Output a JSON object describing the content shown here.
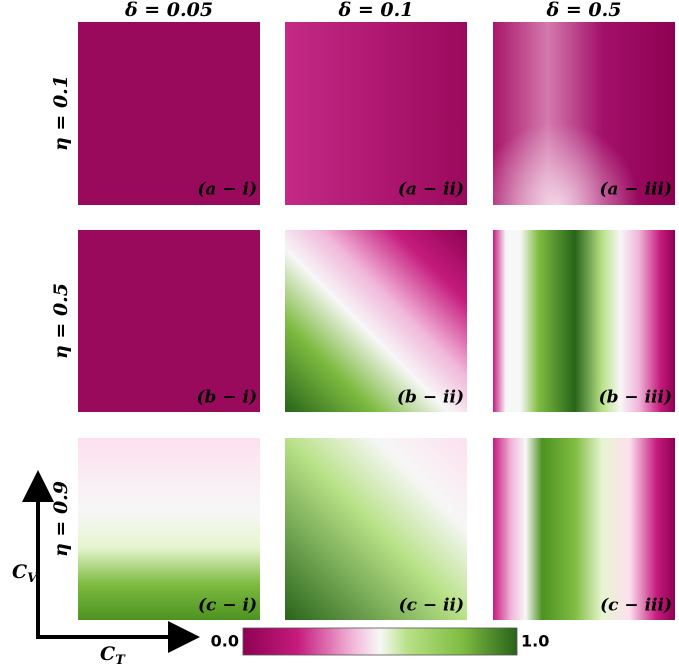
{
  "columns": [
    "δ = 0.05",
    "δ = 0.1",
    "δ = 0.5"
  ],
  "rows": [
    "η = 0.1",
    "η = 0.5",
    "η = 0.9"
  ],
  "panels": [
    [
      "(a − i)",
      "(a − ii)",
      "(a − iii)"
    ],
    [
      "(b − i)",
      "(b − ii)",
      "(b − iii)"
    ],
    [
      "(c − i)",
      "(c − ii)",
      "(c − iii)"
    ]
  ],
  "y_axis": {
    "symbol": "C",
    "subscript": "V"
  },
  "x_axis": {
    "symbol": "C",
    "subscript": "T"
  },
  "colorbar": {
    "range": [
      0,
      1
    ],
    "ticks": [
      {
        "value": 0,
        "label": "0.0"
      },
      {
        "value": 1,
        "label": "1.0"
      }
    ]
  }
}
